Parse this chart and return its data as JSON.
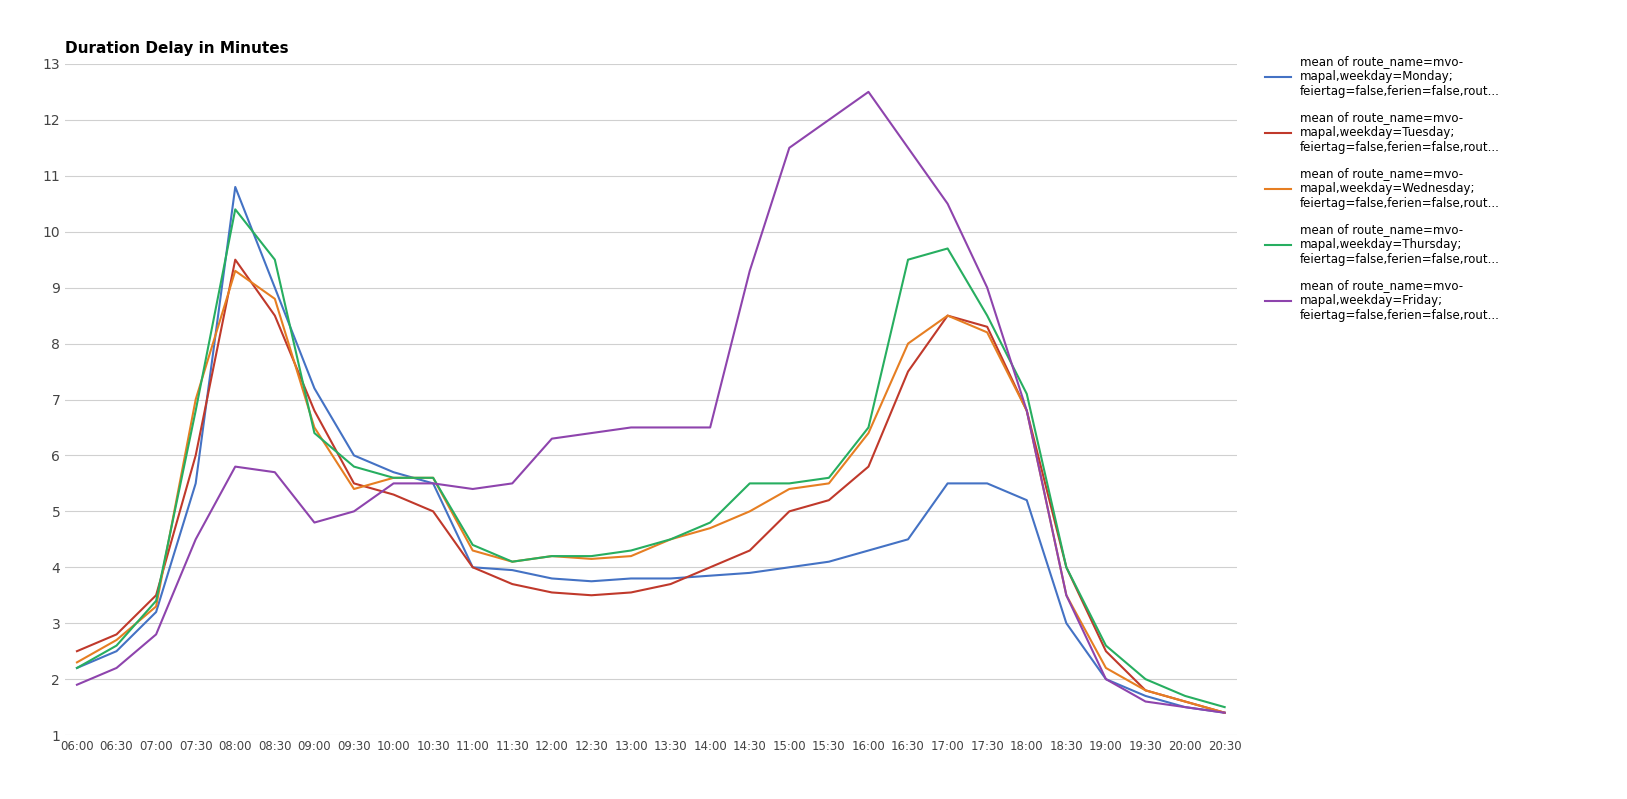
{
  "title": "Duration Delay in Minutes",
  "ylim": [
    1,
    13
  ],
  "yticks": [
    1,
    2,
    3,
    4,
    5,
    6,
    7,
    8,
    9,
    10,
    11,
    12,
    13
  ],
  "background_color": "#ffffff",
  "grid_color": "#d0d0d0",
  "time_labels": [
    "06:00",
    "06:30",
    "07:00",
    "07:30",
    "08:00",
    "08:30",
    "09:00",
    "09:30",
    "10:00",
    "10:30",
    "11:00",
    "11:30",
    "12:00",
    "12:30",
    "13:00",
    "13:30",
    "14:00",
    "14:30",
    "15:00",
    "15:30",
    "16:00",
    "16:30",
    "17:00",
    "17:30",
    "18:00",
    "18:30",
    "19:00",
    "19:30",
    "20:00",
    "20:30"
  ],
  "legend_labels": [
    "mean of route_name=mvo-\nmapal,weekday=Monday;\nfeiertag=false,ferien=false,rout...",
    "mean of route_name=mvo-\nmapal,weekday=Tuesday;\nfeiertag=false,ferien=false,rout...",
    "mean of route_name=mvo-\nmapal,weekday=Wednesday;\nfeiertag=false,ferien=false,rout...",
    "mean of route_name=mvo-\nmapal,weekday=Thursday;\nfeiertag=false,ferien=false,rout...",
    "mean of route_name=mvo-\nmapal,weekday=Friday;\nfeiertag=false,ferien=false,rout..."
  ],
  "colors": [
    "#4472c4",
    "#c0392b",
    "#e67e22",
    "#27ae60",
    "#8e44ad"
  ],
  "series": {
    "Monday": [
      2.2,
      2.5,
      3.2,
      5.5,
      10.8,
      9.0,
      7.2,
      6.0,
      5.7,
      5.5,
      4.0,
      3.95,
      3.8,
      3.75,
      3.8,
      3.8,
      3.85,
      3.9,
      4.0,
      4.1,
      4.3,
      4.5,
      5.5,
      5.5,
      5.2,
      3.0,
      2.0,
      1.7,
      1.5,
      1.4
    ],
    "Tuesday": [
      2.5,
      2.8,
      3.5,
      6.0,
      9.5,
      8.5,
      6.8,
      5.5,
      5.3,
      5.0,
      4.0,
      3.7,
      3.55,
      3.5,
      3.55,
      3.7,
      4.0,
      4.3,
      5.0,
      5.2,
      5.8,
      7.5,
      8.5,
      8.3,
      6.8,
      4.0,
      2.5,
      1.8,
      1.6,
      1.4
    ],
    "Wednesday": [
      2.3,
      2.7,
      3.3,
      7.0,
      9.3,
      8.8,
      6.5,
      5.4,
      5.6,
      5.6,
      4.3,
      4.1,
      4.2,
      4.15,
      4.2,
      4.5,
      4.7,
      5.0,
      5.4,
      5.5,
      6.4,
      8.0,
      8.5,
      8.2,
      6.8,
      3.5,
      2.2,
      1.8,
      1.6,
      1.4
    ],
    "Thursday": [
      2.2,
      2.6,
      3.4,
      6.8,
      10.4,
      9.5,
      6.4,
      5.8,
      5.6,
      5.6,
      4.4,
      4.1,
      4.2,
      4.2,
      4.3,
      4.5,
      4.8,
      5.5,
      5.5,
      5.6,
      6.5,
      9.5,
      9.7,
      8.5,
      7.1,
      4.0,
      2.6,
      2.0,
      1.7,
      1.5
    ],
    "Friday": [
      1.9,
      2.2,
      2.8,
      4.5,
      5.8,
      5.7,
      4.8,
      5.0,
      5.5,
      5.5,
      5.4,
      5.5,
      6.3,
      6.4,
      6.5,
      6.5,
      6.5,
      9.3,
      11.5,
      12.0,
      12.5,
      11.5,
      10.5,
      9.0,
      6.8,
      3.5,
      2.0,
      1.6,
      1.5,
      1.4
    ]
  }
}
